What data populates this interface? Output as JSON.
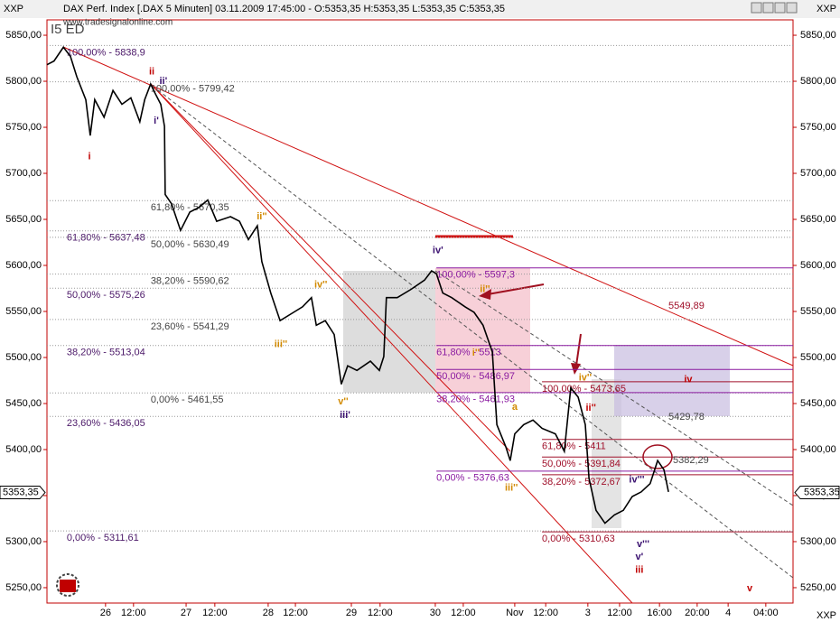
{
  "chart_data": {
    "type": "line",
    "title": "DAX Perf. Index [.DAX  5 Minuten] 03.11.2009 17:45:00 - O:5353,35 H:5353,35 L:5353,35 C:5353,35",
    "source": "www.tradesignalonline.com",
    "corner_label": "XXP",
    "study_label": "I5 ED",
    "color": "#000000",
    "xlim": [
      0,
      200
    ],
    "ylim": [
      5233.3,
      5866.7
    ],
    "xticks": [
      {
        "value": 15.7,
        "label": "26"
      },
      {
        "value": 23.2,
        "label": "12:00"
      },
      {
        "value": 37.3,
        "label": "27"
      },
      {
        "value": 45,
        "label": "12:00"
      },
      {
        "value": 59.3,
        "label": "28"
      },
      {
        "value": 66.6,
        "label": "12:00"
      },
      {
        "value": 81.6,
        "label": "29"
      },
      {
        "value": 89.3,
        "label": "12:00"
      },
      {
        "value": 104.1,
        "label": "30"
      },
      {
        "value": 111.6,
        "label": "12:00"
      },
      {
        "value": 125.4,
        "label": "Nov"
      },
      {
        "value": 133.7,
        "label": "12:00"
      },
      {
        "value": 145,
        "label": "3"
      },
      {
        "value": 153.5,
        "label": "12:00"
      },
      {
        "value": 164.2,
        "label": "16:00"
      },
      {
        "value": 174.3,
        "label": "20:00"
      },
      {
        "value": 182.6,
        "label": "4"
      },
      {
        "value": 192.7,
        "label": "04:00"
      }
    ],
    "yticks": [
      {
        "value": 5250,
        "label": "5250,00"
      },
      {
        "value": 5300,
        "label": "5300,00"
      },
      {
        "value": 5350,
        "label": "5350,00"
      },
      {
        "value": 5400,
        "label": "5400,00"
      },
      {
        "value": 5450,
        "label": "5450,00"
      },
      {
        "value": 5500,
        "label": "5500,00"
      },
      {
        "value": 5550,
        "label": "5550,00"
      },
      {
        "value": 5600,
        "label": "5600,00"
      },
      {
        "value": 5650,
        "label": "5650,00"
      },
      {
        "value": 5700,
        "label": "5700,00"
      },
      {
        "value": 5750,
        "label": "5750,00"
      },
      {
        "value": 5800,
        "label": "5800,00"
      },
      {
        "value": 5850,
        "label": "5850,00"
      }
    ],
    "last": {
      "value": 5353.35,
      "label": "5353,35"
    },
    "x": [
      0,
      1.9,
      4.4,
      6.3,
      8,
      10.4,
      11.6,
      12.8,
      15.3,
      17.7,
      20.1,
      22.5,
      24.9,
      26.2,
      27.8,
      28.6,
      30.5,
      31.5,
      31.7,
      33.4,
      35.8,
      38.3,
      40.7,
      43.1,
      45.5,
      49.2,
      51.6,
      54,
      56.4,
      57.6,
      60,
      62.5,
      66.1,
      68.5,
      70.9,
      72.2,
      74.6,
      77,
      78.9,
      80.6,
      83.1,
      86.7,
      89.1,
      90.3,
      91,
      93.9,
      97.6,
      101.2,
      103.1,
      104.4,
      106.1,
      108.5,
      112.1,
      114.5,
      116.9,
      119.4,
      120.6,
      123,
      124.2,
      125.4,
      127.8,
      130.3,
      132.7,
      136.3,
      138.7,
      140.4,
      142.4,
      144.3,
      145.3,
      147.2,
      149.6,
      152.1,
      154.5,
      156.9,
      159.3,
      161.7,
      163.7,
      165.4,
      166.6
    ],
    "values": [
      5818,
      5822,
      5837,
      5827,
      5805,
      5780,
      5741,
      5780,
      5761,
      5790,
      5775,
      5782,
      5756,
      5780,
      5797,
      5790,
      5775,
      5751,
      5677,
      5667,
      5638,
      5658,
      5663,
      5671,
      5648,
      5653,
      5648,
      5628,
      5643,
      5604,
      5570,
      5540,
      5549,
      5555,
      5565,
      5535,
      5540,
      5525,
      5471,
      5491,
      5486,
      5496,
      5486,
      5501,
      5565,
      5565,
      5574,
      5584,
      5594,
      5591,
      5570,
      5565,
      5555,
      5549,
      5535,
      5506,
      5427,
      5403,
      5388,
      5417,
      5427,
      5432,
      5423,
      5417,
      5398,
      5467,
      5457,
      5427,
      5369,
      5334,
      5320,
      5329,
      5334,
      5349,
      5354,
      5363,
      5388,
      5378,
      5354
    ],
    "levels": [
      {
        "label": "100,00% - 5838,9",
        "value": 5838.9,
        "x": 5.3,
        "color": "#4b1868",
        "style": "dotted"
      },
      {
        "label": "61,80% - 5637,48",
        "value": 5637.48,
        "x": 5.3,
        "color": "#4b1868",
        "style": "dotted"
      },
      {
        "label": "50,00% - 5575,26",
        "value": 5575.26,
        "x": 5.3,
        "color": "#4b1868",
        "style": "dotted"
      },
      {
        "label": "38,20% - 5513,04",
        "value": 5513.04,
        "x": 5.3,
        "color": "#4b1868",
        "style": "dotted"
      },
      {
        "label": "23,60% - 5436,05",
        "value": 5436.05,
        "x": 5.3,
        "color": "#4b1868",
        "style": "dotted"
      },
      {
        "label": "0,00% - 5311,61",
        "value": 5311.61,
        "x": 5.3,
        "color": "#4b1868",
        "style": "dotted"
      },
      {
        "label": "100,00% - 5799,42",
        "value": 5799.42,
        "x": 27.8,
        "color": "#444444",
        "style": "dotted"
      },
      {
        "label": "61,80% - 5670,35",
        "value": 5670.35,
        "x": 27.8,
        "color": "#444444",
        "style": "dotted"
      },
      {
        "label": "50,00% - 5630,49",
        "value": 5630.49,
        "x": 27.8,
        "color": "#444444",
        "style": "dotted"
      },
      {
        "label": "38,20% - 5590,62",
        "value": 5590.62,
        "x": 27.8,
        "color": "#444444",
        "style": "dotted"
      },
      {
        "label": "23,60% - 5541,29",
        "value": 5541.29,
        "x": 27.8,
        "color": "#444444",
        "style": "dotted"
      },
      {
        "label": "0,00% - 5461,55",
        "value": 5461.55,
        "x": 27.8,
        "color": "#444444",
        "style": "dotted"
      },
      {
        "label": "100,00% - 5597,3",
        "value": 5597.3,
        "x": 104.4,
        "color": "#8a1aa0",
        "style": "solid"
      },
      {
        "label": "61,80% - 5513",
        "value": 5513,
        "x": 104.4,
        "color": "#8a1aa0",
        "style": "solid"
      },
      {
        "label": "50,00% - 5486,97",
        "value": 5486.97,
        "x": 104.4,
        "color": "#8a1aa0",
        "style": "solid"
      },
      {
        "label": "38,20% - 5461,93",
        "value": 5461.93,
        "x": 104.4,
        "color": "#8a1aa0",
        "style": "solid"
      },
      {
        "label": "0,00% - 5376,63",
        "value": 5376.63,
        "x": 104.4,
        "color": "#8a1aa0",
        "style": "solid"
      },
      {
        "label": "100,00% - 5473,65",
        "value": 5473.65,
        "x": 132.7,
        "color": "#a0102a",
        "style": "solid"
      },
      {
        "label": "61,80% - 5411",
        "value": 5411,
        "x": 132.7,
        "color": "#a0102a",
        "style": "solid"
      },
      {
        "label": "50,00% - 5391,84",
        "value": 5391.84,
        "x": 132.7,
        "color": "#a0102a",
        "style": "solid"
      },
      {
        "label": "38,20% - 5372,67",
        "value": 5372.67,
        "x": 132.7,
        "color": "#a0102a",
        "style": "solid"
      },
      {
        "label": "0,00% - 5310,63",
        "value": 5310.63,
        "x": 132.7,
        "color": "#a0102a",
        "style": "solid"
      }
    ],
    "annotations": [
      {
        "text": "5549,89",
        "x": 166.6,
        "y": 5556,
        "color": "#a0102a"
      },
      {
        "text": "5429,78",
        "x": 166.6,
        "y": 5435,
        "color": "#444444"
      },
      {
        "text": "5382,29",
        "x": 167.8,
        "y": 5388,
        "color": "#444444"
      },
      {
        "text": "i",
        "x": 11.4,
        "y": 5718,
        "color": "#c00000"
      },
      {
        "text": "ii",
        "x": 28.1,
        "y": 5810,
        "color": "#c00000"
      },
      {
        "text": "ii'",
        "x": 31.2,
        "y": 5800,
        "color": "#3a1070"
      },
      {
        "text": "i'",
        "x": 29.3,
        "y": 5757,
        "color": "#3a1070"
      },
      {
        "text": "ii''",
        "x": 57.6,
        "y": 5653,
        "color": "#d28a00"
      },
      {
        "text": "iii''",
        "x": 62.7,
        "y": 5514,
        "color": "#d28a00"
      },
      {
        "text": "iv''",
        "x": 73.4,
        "y": 5579,
        "color": "#d28a00"
      },
      {
        "text": "v''",
        "x": 79.4,
        "y": 5452,
        "color": "#d28a00"
      },
      {
        "text": "iii'",
        "x": 79.9,
        "y": 5437,
        "color": "#3a1070"
      },
      {
        "text": "iv'",
        "x": 104.8,
        "y": 5616,
        "color": "#3a1070"
      },
      {
        "text": "ii''",
        "x": 117.4,
        "y": 5574,
        "color": "#d28a00"
      },
      {
        "text": "i''",
        "x": 115,
        "y": 5505,
        "color": "#d28a00"
      },
      {
        "text": "iii''",
        "x": 124.5,
        "y": 5358,
        "color": "#d28a00"
      },
      {
        "text": "a",
        "x": 125.4,
        "y": 5446,
        "color": "#d28a00"
      },
      {
        "text": "iv''",
        "x": 144.3,
        "y": 5478,
        "color": "#d28a00"
      },
      {
        "text": "ii''",
        "x": 145.8,
        "y": 5445,
        "color": "#c00000"
      },
      {
        "text": "iv'''",
        "x": 158.1,
        "y": 5367,
        "color": "#3a1070"
      },
      {
        "text": "v'''",
        "x": 159.8,
        "y": 5297,
        "color": "#3a1070"
      },
      {
        "text": "v'",
        "x": 158.8,
        "y": 5283,
        "color": "#3a1070"
      },
      {
        "text": "iii",
        "x": 158.8,
        "y": 5269,
        "color": "#c00000"
      },
      {
        "text": "iv",
        "x": 171.9,
        "y": 5476,
        "color": "#c00000"
      },
      {
        "text": "v",
        "x": 188.4,
        "y": 5249,
        "color": "#c00000"
      }
    ]
  }
}
